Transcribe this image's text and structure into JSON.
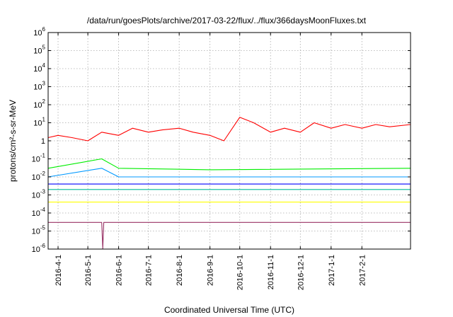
{
  "chart_data": {
    "type": "line",
    "title": "/data/run/goesPlots/archive/2017-03-22/flux/../flux/366daysMoonFluxes.txt",
    "xlabel": "Coordinated Universal Time (UTC)",
    "ylabel": "protons/cm²-s-sr-MeV",
    "y_scale": "log",
    "ylim": [
      1e-06,
      1000000.0
    ],
    "y_ticks": [
      {
        "base": "10",
        "exp": "-6",
        "value": 1e-06
      },
      {
        "base": "10",
        "exp": "-5",
        "value": 1e-05
      },
      {
        "base": "10",
        "exp": "-4",
        "value": 0.0001
      },
      {
        "base": "10",
        "exp": "-3",
        "value": 0.001
      },
      {
        "base": "10",
        "exp": "-2",
        "value": 0.01
      },
      {
        "base": "10",
        "exp": "-1",
        "value": 0.1
      },
      {
        "base": "1",
        "exp": "",
        "value": 1
      },
      {
        "base": "10",
        "exp": "1",
        "value": 10
      },
      {
        "base": "10",
        "exp": "2",
        "value": 100
      },
      {
        "base": "10",
        "exp": "3",
        "value": 1000
      },
      {
        "base": "10",
        "exp": "4",
        "value": 10000
      },
      {
        "base": "10",
        "exp": "5",
        "value": 100000
      },
      {
        "base": "10",
        "exp": "6",
        "value": 1000000
      }
    ],
    "xlim": [
      "2016-03-22",
      "2017-03-22"
    ],
    "x_ticks": [
      "2016-4-1",
      "2016-5-1",
      "2016-6-1",
      "2016-7-1",
      "2016-8-1",
      "2016-9-1",
      "2016-10-1",
      "2016-11-1",
      "2016-12-1",
      "2017-1-1",
      "2017-2-1"
    ],
    "x_tick_dates": [
      "2016-04-01",
      "2016-05-01",
      "2016-06-01",
      "2016-07-01",
      "2016-08-01",
      "2016-09-01",
      "2016-10-01",
      "2016-11-01",
      "2016-12-01",
      "2017-01-01",
      "2017-02-01"
    ],
    "grid": true,
    "series": [
      {
        "color": "#ff0000",
        "x": [
          "2016-03-22",
          "2016-04-01",
          "2016-04-15",
          "2016-05-01",
          "2016-05-15",
          "2016-06-01",
          "2016-06-15",
          "2016-07-01",
          "2016-07-15",
          "2016-08-01",
          "2016-08-15",
          "2016-09-01",
          "2016-09-15",
          "2016-10-01",
          "2016-10-15",
          "2016-11-01",
          "2016-11-15",
          "2016-12-01",
          "2016-12-15",
          "2017-01-01",
          "2017-01-15",
          "2017-02-01",
          "2017-02-15",
          "2017-03-01",
          "2017-03-22"
        ],
        "y": [
          1.5,
          2,
          1.5,
          1,
          3,
          2,
          5,
          3,
          4,
          5,
          3,
          2,
          1,
          20,
          10,
          3,
          5,
          3,
          10,
          5,
          8,
          5,
          8,
          6,
          8
        ]
      },
      {
        "color": "#00ee00",
        "x": [
          "2016-03-22",
          "2016-05-15",
          "2016-06-01",
          "2016-09-01",
          "2017-03-22"
        ],
        "y": [
          0.03,
          0.1,
          0.03,
          0.025,
          0.03
        ]
      },
      {
        "color": "#0099ff",
        "x": [
          "2016-03-22",
          "2016-05-15",
          "2016-06-01",
          "2017-03-22"
        ],
        "y": [
          0.01,
          0.03,
          0.01,
          0.01
        ]
      },
      {
        "color": "#0000ff",
        "x": [
          "2016-03-22",
          "2017-03-22"
        ],
        "y": [
          0.004,
          0.004
        ]
      },
      {
        "color": "#00bb99",
        "x": [
          "2016-03-22",
          "2017-03-22"
        ],
        "y": [
          0.002,
          0.002
        ]
      },
      {
        "color": "#ffff00",
        "x": [
          "2016-03-22",
          "2017-03-22"
        ],
        "y": [
          0.0004,
          0.0004
        ]
      },
      {
        "color": "#993366",
        "x": [
          "2016-03-22",
          "2016-05-15",
          "2016-05-16",
          "2016-05-17",
          "2017-03-22"
        ],
        "y": [
          3e-05,
          3e-05,
          1e-06,
          3e-05,
          3e-05
        ]
      }
    ]
  }
}
